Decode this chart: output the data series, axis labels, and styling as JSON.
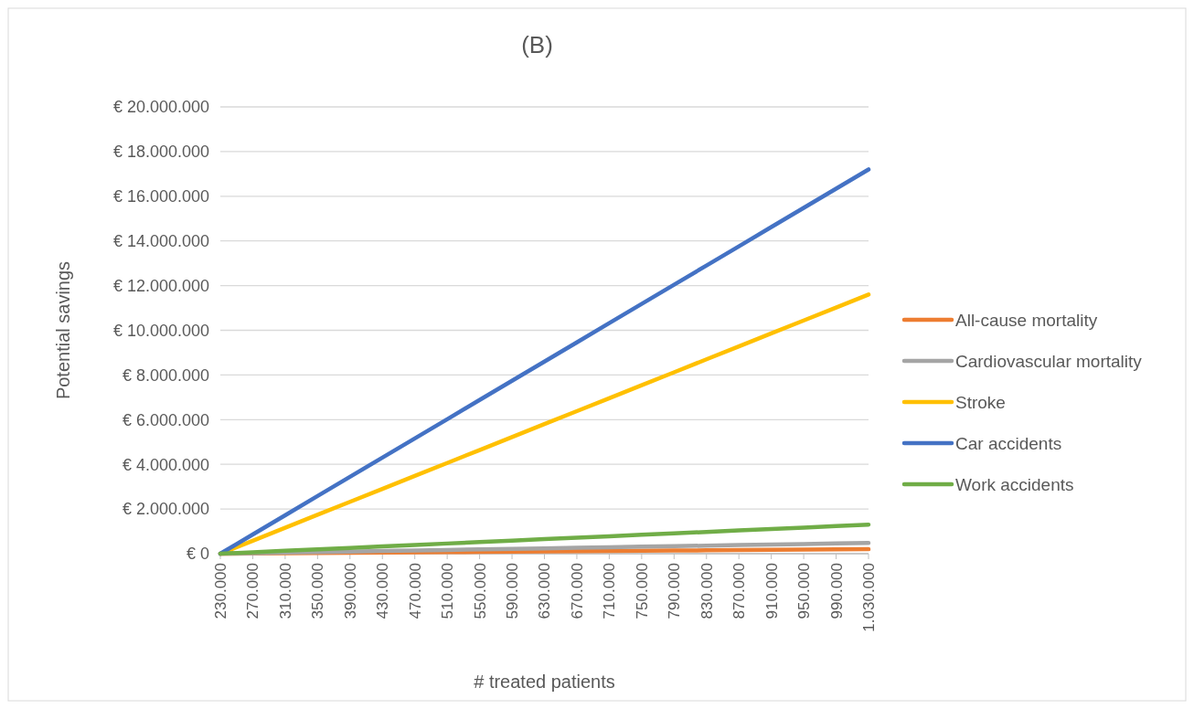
{
  "chart_data": {
    "type": "line",
    "title": "(B)",
    "xlabel": "# treated patients",
    "ylabel": "Potential savings",
    "categories": [
      "230.000",
      "270.000",
      "310.000",
      "350.000",
      "390.000",
      "430.000",
      "470.000",
      "510.000",
      "550.000",
      "590.000",
      "630.000",
      "670.000",
      "710.000",
      "750.000",
      "790.000",
      "830.000",
      "870.000",
      "910.000",
      "950.000",
      "990.000",
      "1.030.000"
    ],
    "series": [
      {
        "name": "All-cause mortality",
        "color": "#ed7d31",
        "values": [
          0,
          10000,
          20000,
          30000,
          40000,
          50000,
          60000,
          70000,
          80000,
          90000,
          100000,
          110000,
          120000,
          130000,
          140000,
          150000,
          160000,
          170000,
          180000,
          190000,
          200000
        ]
      },
      {
        "name": "Cardiovascular mortality",
        "color": "#a5a5a5",
        "values": [
          0,
          24000,
          48000,
          72000,
          96000,
          120000,
          144000,
          168000,
          192000,
          216000,
          240000,
          264000,
          288000,
          312000,
          336000,
          360000,
          384000,
          408000,
          432000,
          456000,
          480000
        ]
      },
      {
        "name": "Stroke",
        "color": "#ffc000",
        "values": [
          0,
          580000,
          1160000,
          1740000,
          2320000,
          2900000,
          3480000,
          4060000,
          4640000,
          5220000,
          5800000,
          6380000,
          6960000,
          7540000,
          8120000,
          8700000,
          9280000,
          9860000,
          10440000,
          11020000,
          11600000
        ]
      },
      {
        "name": "Car accidents",
        "color": "#4472c4",
        "values": [
          0,
          860000,
          1720000,
          2580000,
          3440000,
          4300000,
          5160000,
          6020000,
          6880000,
          7740000,
          8600000,
          9460000,
          10320000,
          11180000,
          12040000,
          12900000,
          13760000,
          14620000,
          15480000,
          16340000,
          17200000
        ]
      },
      {
        "name": "Work accidents",
        "color": "#70ad47",
        "values": [
          0,
          65000,
          130000,
          195000,
          260000,
          325000,
          390000,
          455000,
          520000,
          585000,
          650000,
          715000,
          780000,
          845000,
          910000,
          975000,
          1040000,
          1105000,
          1170000,
          1235000,
          1300000
        ]
      }
    ],
    "ylim": [
      0,
      20000000
    ],
    "yticks": [
      {
        "value": 0,
        "label": "€ 0"
      },
      {
        "value": 2000000,
        "label": "€ 2.000.000"
      },
      {
        "value": 4000000,
        "label": "€ 4.000.000"
      },
      {
        "value": 6000000,
        "label": "€ 6.000.000"
      },
      {
        "value": 8000000,
        "label": "€ 8.000.000"
      },
      {
        "value": 10000000,
        "label": "€ 10.000.000"
      },
      {
        "value": 12000000,
        "label": "€ 12.000.000"
      },
      {
        "value": 14000000,
        "label": "€ 14.000.000"
      },
      {
        "value": 16000000,
        "label": "€ 16.000.000"
      },
      {
        "value": 18000000,
        "label": "€ 18.000.000"
      },
      {
        "value": 20000000,
        "label": "€ 20.000.000"
      }
    ],
    "grid": "y",
    "legend": "right",
    "marker": "none",
    "line_style": "solid"
  }
}
